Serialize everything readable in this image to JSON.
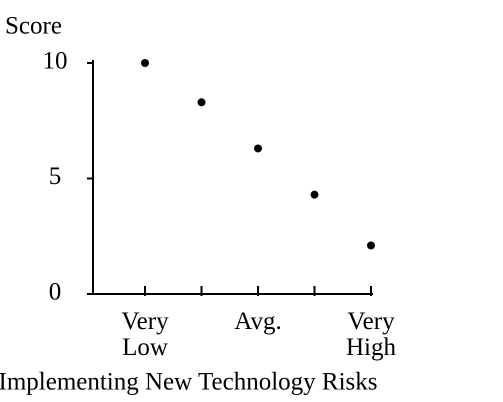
{
  "chart_data": {
    "type": "dot",
    "y_label": "Score",
    "x_label": "Implementing New Technology Risks",
    "categories": [
      "Very Low",
      null,
      "Avg.",
      null,
      "Very High"
    ],
    "values": [
      10,
      8.3,
      6.3,
      4.3,
      2.1
    ],
    "color": "#000000",
    "ylim": [
      0,
      10
    ],
    "yticks": [
      0,
      5,
      10
    ]
  }
}
